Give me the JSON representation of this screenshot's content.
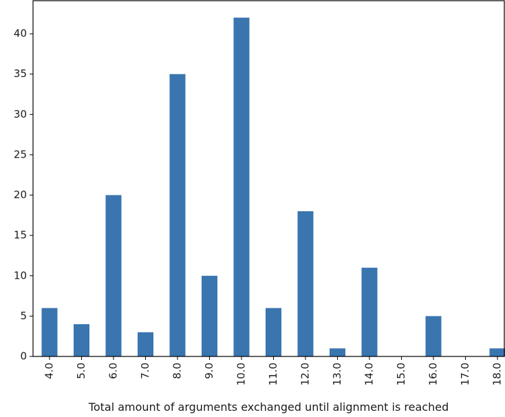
{
  "chart_data": {
    "type": "bar",
    "title": "",
    "xlabel": "Total amount of arguments exchanged until alignment is reached",
    "ylabel": "",
    "categories": [
      "4.0",
      "5.0",
      "6.0",
      "7.0",
      "8.0",
      "9.0",
      "10.0",
      "11.0",
      "12.0",
      "13.0",
      "14.0",
      "15.0",
      "16.0",
      "17.0",
      "18.0"
    ],
    "values": [
      6,
      4,
      20,
      3,
      35,
      10,
      42,
      6,
      18,
      1,
      11,
      0,
      5,
      0,
      1
    ],
    "ylim": [
      0,
      44.1
    ],
    "yticks": [
      "0",
      "5",
      "10",
      "15",
      "20",
      "25",
      "30",
      "35",
      "40"
    ],
    "grid": false,
    "legend": "none",
    "bar_color": "#3a75b0",
    "axis_color": "#000000"
  }
}
